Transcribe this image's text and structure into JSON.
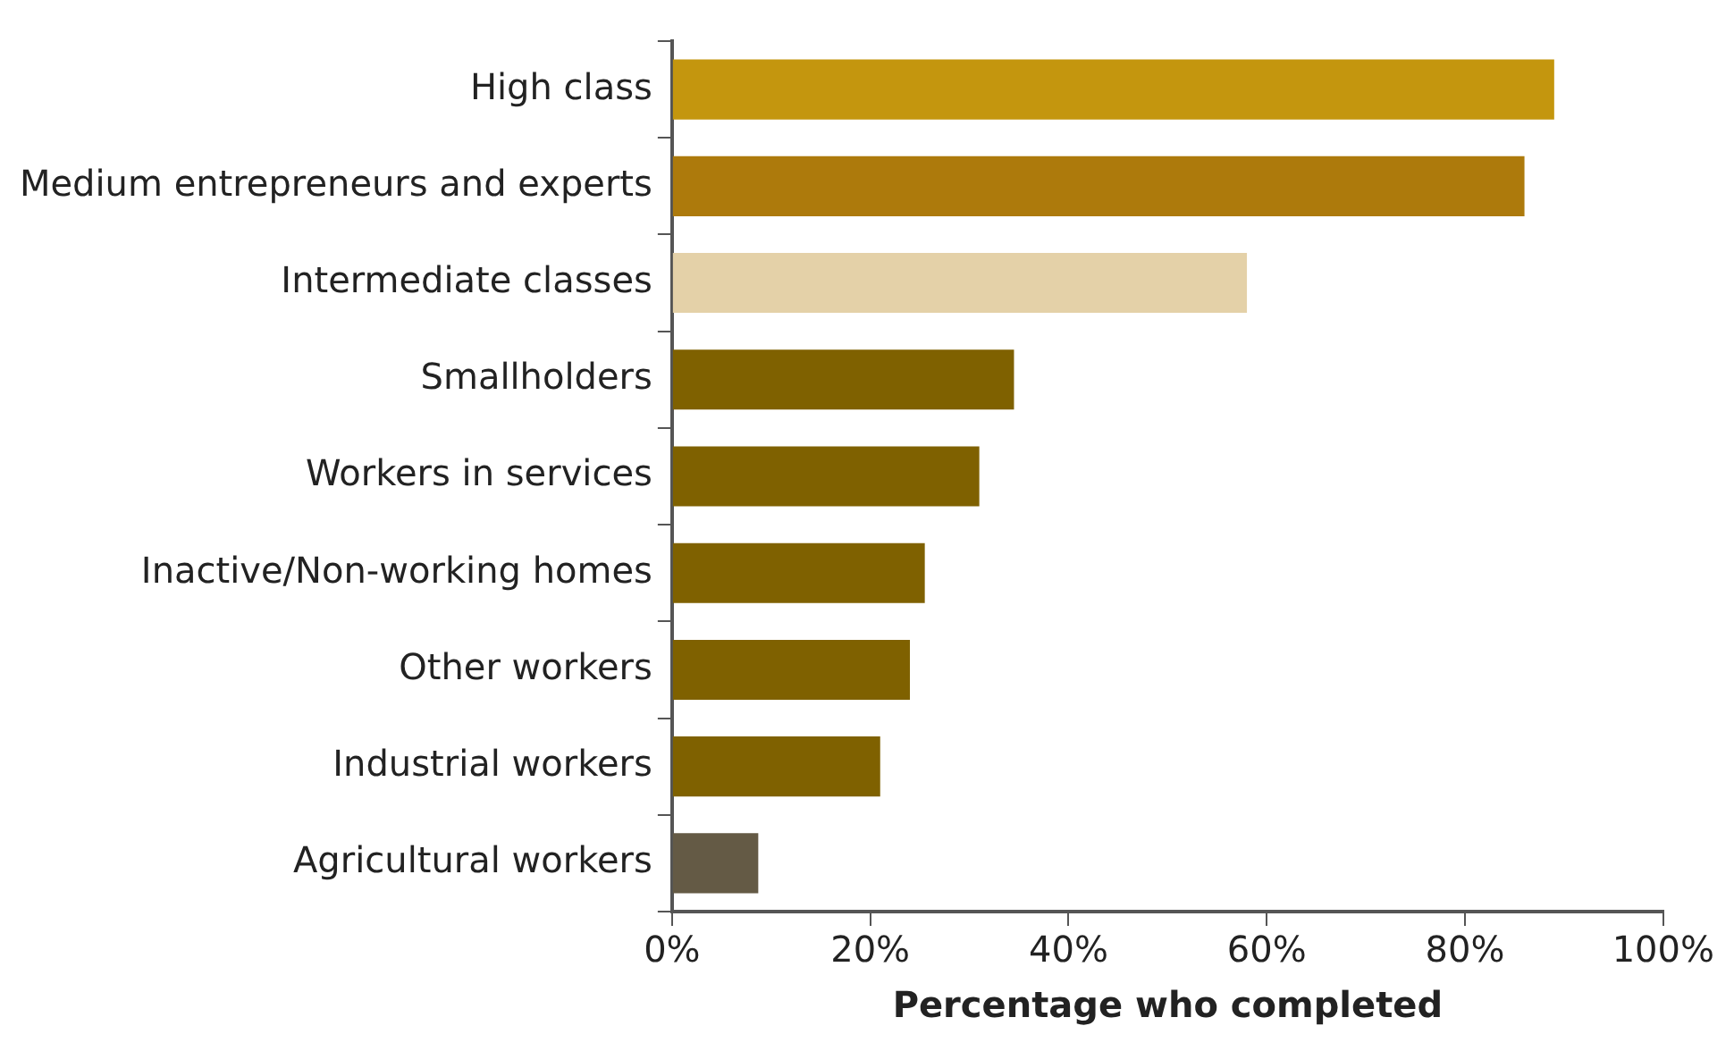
{
  "chart_data": {
    "type": "bar",
    "orientation": "horizontal",
    "xlabel": "Percentage who completed",
    "categories": [
      "High class",
      "Medium entrepreneurs and experts",
      "Intermediate classes",
      "Smallholders",
      "Workers in services",
      "Inactive/Non-working homes",
      "Other workers",
      "Industrial workers",
      "Agricultural workers"
    ],
    "values": [
      89,
      86,
      58,
      34.5,
      31,
      25.5,
      24,
      21,
      8.7
    ],
    "colors": [
      "#c4960e",
      "#ad7a0c",
      "#e4d1a8",
      "#7f6100",
      "#7f6100",
      "#7f6100",
      "#7f6100",
      "#7f6100",
      "#645a45"
    ],
    "xlim": [
      0,
      100
    ],
    "xticks": [
      {
        "value": 0,
        "label": "0%"
      },
      {
        "value": 20,
        "label": "20%"
      },
      {
        "value": 40,
        "label": "40%"
      },
      {
        "value": 60,
        "label": "60%"
      },
      {
        "value": 80,
        "label": "80%"
      },
      {
        "value": 100,
        "label": "100%"
      }
    ],
    "grid": false,
    "legend": false
  }
}
